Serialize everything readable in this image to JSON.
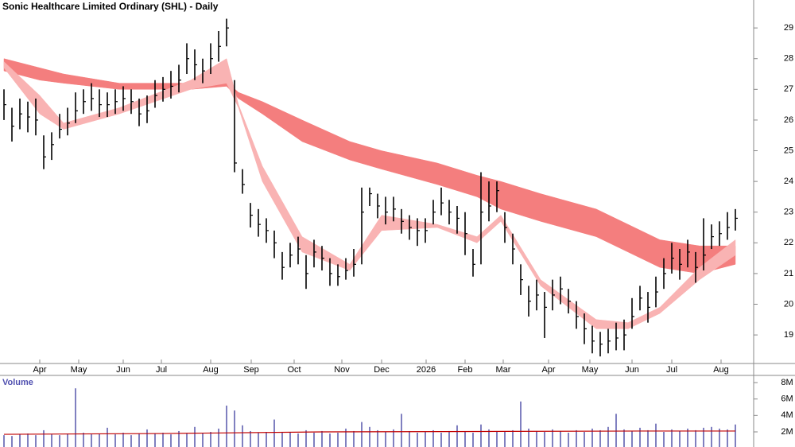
{
  "chart_data": [
    {
      "type": "ohlc",
      "title": "Sonic Healthcare Limited Ordinary (SHL) - Daily",
      "color": "#000000",
      "xlim": [
        -0.5,
        94.3
      ],
      "xticks": [
        {
          "value": 4.5,
          "label": "Apr"
        },
        {
          "value": 9.4,
          "label": "May"
        },
        {
          "value": 15,
          "label": "Jun"
        },
        {
          "value": 19.8,
          "label": "Jul"
        },
        {
          "value": 26,
          "label": "Aug"
        },
        {
          "value": 31.1,
          "label": "Sep"
        },
        {
          "value": 36.5,
          "label": "Oct"
        },
        {
          "value": 42.5,
          "label": "Nov"
        },
        {
          "value": 47.5,
          "label": "Dec"
        },
        {
          "value": 53.1,
          "label": "2026"
        },
        {
          "value": 58,
          "label": "Feb"
        },
        {
          "value": 62.8,
          "label": "Mar"
        },
        {
          "value": 68.5,
          "label": "Apr"
        },
        {
          "value": 73.7,
          "label": "May"
        },
        {
          "value": 79,
          "label": "Jun"
        },
        {
          "value": 84,
          "label": "Jul"
        },
        {
          "value": 90.2,
          "label": "Aug"
        }
      ],
      "ylim": [
        18.07,
        29.91
      ],
      "yticks": [
        19,
        20,
        21,
        22,
        23,
        24,
        25,
        26,
        27,
        28,
        29
      ],
      "high": [
        27.0,
        26.4,
        26.7,
        26.6,
        26.7,
        25.5,
        25.6,
        26.2,
        26.4,
        26.9,
        27.0,
        27.2,
        27.0,
        26.9,
        27.0,
        27.1,
        27.0,
        26.7,
        26.8,
        27.3,
        27.4,
        27.6,
        27.8,
        28.5,
        28.3,
        28.0,
        28.5,
        28.9,
        29.3,
        27.3,
        24.4,
        23.3,
        23.1,
        22.8,
        22.4,
        21.7,
        22.0,
        22.2,
        21.6,
        22.1,
        21.9,
        21.5,
        21.3,
        21.5,
        21.8,
        23.8,
        23.8,
        23.6,
        23.5,
        23.5,
        23.1,
        22.9,
        22.8,
        22.8,
        23.4,
        23.8,
        23.4,
        23.2,
        23.0,
        21.8,
        24.3,
        24.0,
        24.0,
        23.0,
        22.3,
        21.3,
        20.6,
        20.8,
        20.4,
        20.8,
        20.9,
        20.5,
        20.1,
        19.7,
        19.3,
        19.1,
        19.2,
        19.4,
        19.5,
        20.2,
        20.6,
        20.4,
        20.9,
        21.5,
        22.0,
        21.8,
        22.1,
        21.7,
        22.8,
        22.6,
        22.7,
        23.0,
        23.1
      ],
      "low": [
        26.0,
        25.3,
        25.7,
        25.6,
        25.5,
        24.4,
        24.7,
        25.4,
        25.5,
        25.9,
        26.2,
        26.3,
        26.1,
        26.1,
        26.2,
        26.3,
        26.2,
        25.8,
        25.9,
        26.4,
        26.6,
        26.7,
        26.9,
        27.5,
        27.3,
        27.2,
        27.5,
        27.9,
        28.4,
        24.3,
        23.6,
        22.5,
        22.2,
        22.0,
        21.5,
        20.8,
        21.2,
        21.3,
        20.5,
        21.2,
        21.1,
        20.6,
        20.6,
        20.8,
        20.9,
        21.3,
        23.2,
        22.8,
        22.6,
        22.7,
        22.3,
        22.1,
        21.9,
        22.0,
        22.6,
        22.9,
        22.6,
        22.3,
        21.6,
        20.9,
        21.3,
        22.7,
        23.0,
        22.0,
        21.3,
        20.3,
        19.6,
        19.8,
        18.9,
        19.8,
        20.0,
        19.7,
        19.2,
        18.7,
        18.4,
        18.3,
        18.4,
        18.5,
        18.5,
        19.2,
        19.8,
        19.4,
        19.9,
        20.5,
        21.0,
        20.8,
        21.2,
        20.7,
        21.1,
        21.8,
        21.9,
        22.1,
        22.4
      ],
      "close": [
        26.5,
        25.8,
        26.2,
        26.1,
        26.0,
        24.8,
        25.2,
        25.7,
        25.9,
        26.3,
        26.6,
        26.7,
        26.5,
        26.5,
        26.6,
        26.7,
        26.6,
        26.2,
        26.3,
        26.8,
        27.0,
        27.1,
        27.3,
        28.0,
        27.8,
        27.6,
        28.0,
        28.4,
        29.0,
        24.6,
        23.9,
        22.9,
        22.6,
        22.4,
        22.0,
        21.2,
        21.6,
        21.8,
        21.0,
        21.7,
        21.5,
        21.0,
        20.9,
        21.1,
        21.3,
        23.0,
        23.6,
        23.2,
        23.0,
        23.1,
        22.7,
        22.5,
        22.4,
        22.4,
        23.0,
        23.3,
        23.0,
        22.8,
        22.3,
        21.3,
        23.0,
        23.2,
        23.7,
        22.5,
        21.8,
        20.8,
        20.1,
        20.3,
        19.9,
        20.3,
        20.5,
        20.1,
        19.6,
        19.2,
        18.8,
        18.7,
        18.8,
        18.9,
        19.0,
        19.6,
        20.2,
        19.9,
        20.4,
        21.0,
        21.5,
        21.3,
        21.7,
        21.2,
        21.6,
        22.2,
        22.3,
        22.5,
        22.8
      ],
      "bands": [
        {
          "color": "#f47e7e",
          "x": [
            0,
            4.5,
            7.5,
            14.5,
            23.5,
            28,
            29.5,
            32.5,
            37.5,
            43.5,
            47.5,
            54.5,
            59.5,
            62.5,
            67.5,
            74.5,
            78.5,
            82.5,
            87.5,
            92
          ],
          "upper": [
            28.0,
            27.7,
            27.5,
            27.2,
            27.2,
            27.25,
            26.9,
            26.6,
            26.0,
            25.3,
            25.0,
            24.6,
            24.2,
            24.0,
            23.6,
            23.1,
            22.6,
            22.1,
            21.9,
            21.9
          ],
          "lower": [
            27.6,
            27.3,
            27.2,
            27.0,
            27.0,
            27.1,
            26.7,
            26.2,
            25.3,
            24.7,
            24.4,
            23.9,
            23.5,
            23.1,
            22.7,
            22.2,
            21.7,
            21.2,
            21.0,
            21.3
          ]
        },
        {
          "color": "#f9b3b3",
          "x": [
            0,
            4.5,
            7.5,
            14.5,
            23.5,
            28,
            29.5,
            32.5,
            37.5,
            43.5,
            47.5,
            54.5,
            59.5,
            62.5,
            67.5,
            74.5,
            78.5,
            82.5,
            87.5,
            92
          ],
          "upper": [
            27.9,
            26.8,
            25.9,
            26.4,
            27.3,
            28.0,
            26.5,
            24.5,
            22.2,
            21.3,
            22.9,
            22.6,
            22.2,
            22.9,
            20.8,
            19.5,
            19.4,
            19.9,
            21.2,
            22.1
          ],
          "lower": [
            27.7,
            26.2,
            25.7,
            26.2,
            27.0,
            27.2,
            26.4,
            24.0,
            21.7,
            21.1,
            22.4,
            22.5,
            22.0,
            22.7,
            20.6,
            19.2,
            19.2,
            19.7,
            20.8,
            21.6
          ]
        }
      ]
    },
    {
      "type": "bar",
      "title": "Volume",
      "color": "#8080c0",
      "ylim": [
        0.16,
        8.87
      ],
      "yticks": [
        {
          "value": 2,
          "label": "2M"
        },
        {
          "value": 4,
          "label": "4M"
        },
        {
          "value": 6,
          "label": "6M"
        },
        {
          "value": 8,
          "label": "8M"
        }
      ],
      "values": [
        1.6,
        1.5,
        1.7,
        1.8,
        1.6,
        2.2,
        1.7,
        1.6,
        1.8,
        7.3,
        1.9,
        1.7,
        1.8,
        2.5,
        1.7,
        1.9,
        1.6,
        1.8,
        2.3,
        1.8,
        1.9,
        1.7,
        2.1,
        1.8,
        2.6,
        1.9,
        2.0,
        2.4,
        5.2,
        4.6,
        2.8,
        2.1,
        1.9,
        2.0,
        3.5,
        1.9,
        2.0,
        1.8,
        2.2,
        1.9,
        2.1,
        1.8,
        1.9,
        2.4,
        2.1,
        3.2,
        2.6,
        2.2,
        2.0,
        2.3,
        4.2,
        2.1,
        1.9,
        2.0,
        2.2,
        1.9,
        2.1,
        2.8,
        2.0,
        1.9,
        2.9,
        2.3,
        2.1,
        2.0,
        2.2,
        5.7,
        2.4,
        2.1,
        2.0,
        2.3,
        2.1,
        1.9,
        2.2,
        2.0,
        2.4,
        2.2,
        2.6,
        4.2,
        2.3,
        2.1,
        2.5,
        2.2,
        3.0,
        2.0,
        2.3,
        2.1,
        2.4,
        2.2,
        2.5,
        2.6,
        2.4,
        2.3,
        2.9
      ],
      "average": {
        "color": "#c00000",
        "x": [
          0,
          20,
          40,
          60,
          80,
          92
        ],
        "values": [
          1.7,
          1.8,
          2.0,
          2.05,
          2.1,
          2.1
        ]
      }
    }
  ]
}
